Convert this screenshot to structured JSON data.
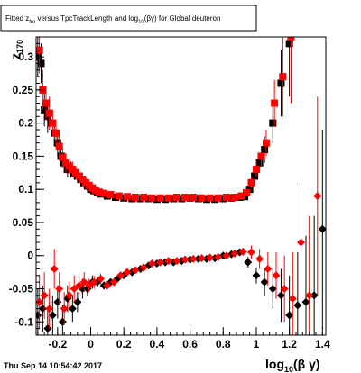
{
  "chart_data": {
    "type": "scatter",
    "title": "Fitted z_{fro} versus TpcTrackLength and log_{10}(βγ) for Global deuteron",
    "xlabel": "log_{10}(βγ)",
    "ylabel": "z_{170}",
    "xlim": [
      -0.33,
      1.42
    ],
    "ylim": [
      -0.12,
      0.33
    ],
    "x_ticks": [
      "-0.2",
      "0",
      "0.2",
      "0.4",
      "0.6",
      "0.8",
      "1",
      "1.2",
      "1.4"
    ],
    "x_tick_values": [
      -0.2,
      0,
      0.2,
      0.4,
      0.6,
      0.8,
      1,
      1.2,
      1.4
    ],
    "y_ticks": [
      "0.3",
      "0.25",
      "0.2",
      "0.15",
      "0.1",
      "0.05",
      "0",
      "-0.05",
      "-0.1"
    ],
    "y_tick_values": [
      0.3,
      0.25,
      0.2,
      0.15,
      0.1,
      0.05,
      0,
      -0.05,
      -0.1
    ],
    "series": [
      {
        "color": "#000000",
        "marker": "square",
        "x": [
          -0.32,
          -0.3,
          -0.28,
          -0.26,
          -0.24,
          -0.22,
          -0.2,
          -0.18,
          -0.16,
          -0.14,
          -0.12,
          -0.1,
          -0.08,
          -0.06,
          -0.04,
          -0.02,
          0.0,
          0.02,
          0.04,
          0.06,
          0.1,
          0.15,
          0.2,
          0.25,
          0.3,
          0.35,
          0.4,
          0.45,
          0.5,
          0.55,
          0.6,
          0.65,
          0.7,
          0.75,
          0.8,
          0.85,
          0.9,
          0.93,
          0.96,
          0.99,
          1.02,
          1.05,
          1.1,
          1.15,
          1.2
        ],
        "y": [
          0.3,
          0.29,
          0.22,
          0.21,
          0.2,
          0.185,
          0.17,
          0.15,
          0.14,
          0.13,
          0.13,
          0.125,
          0.12,
          0.115,
          0.11,
          0.105,
          0.1,
          0.098,
          0.095,
          0.093,
          0.09,
          0.088,
          0.087,
          0.086,
          0.086,
          0.086,
          0.085,
          0.085,
          0.086,
          0.086,
          0.087,
          0.086,
          0.085,
          0.085,
          0.086,
          0.087,
          0.088,
          0.089,
          0.1,
          0.12,
          0.14,
          0.16,
          0.2,
          0.26,
          0.32
        ],
        "err": [
          0.03,
          0.03,
          0.025,
          0.025,
          0.02,
          0.02,
          0.02,
          0.015,
          0.015,
          0.012,
          0.012,
          0.01,
          0.01,
          0.01,
          0.008,
          0.008,
          0.007,
          0.006,
          0.005,
          0.005,
          0.004,
          0.004,
          0.003,
          0.003,
          0.003,
          0.003,
          0.003,
          0.003,
          0.003,
          0.003,
          0.003,
          0.003,
          0.003,
          0.003,
          0.004,
          0.004,
          0.004,
          0.006,
          0.008,
          0.01,
          0.015,
          0.02,
          0.03,
          0.05,
          0.08
        ]
      },
      {
        "color": "#ff0000",
        "marker": "square",
        "x": [
          -0.31,
          -0.29,
          -0.27,
          -0.25,
          -0.23,
          -0.21,
          -0.19,
          -0.17,
          -0.15,
          -0.13,
          -0.11,
          -0.09,
          -0.07,
          -0.05,
          -0.03,
          -0.01,
          0.01,
          0.03,
          0.05,
          0.08,
          0.12,
          0.17,
          0.22,
          0.27,
          0.32,
          0.37,
          0.42,
          0.47,
          0.52,
          0.57,
          0.62,
          0.67,
          0.72,
          0.77,
          0.82,
          0.87,
          0.91,
          0.94,
          0.97,
          1.0,
          1.03,
          1.06,
          1.11,
          1.16,
          1.21
        ],
        "y": [
          0.31,
          0.25,
          0.23,
          0.215,
          0.2,
          0.185,
          0.165,
          0.148,
          0.14,
          0.135,
          0.13,
          0.125,
          0.12,
          0.115,
          0.11,
          0.106,
          0.102,
          0.099,
          0.096,
          0.094,
          0.092,
          0.09,
          0.089,
          0.088,
          0.088,
          0.087,
          0.087,
          0.087,
          0.088,
          0.088,
          0.088,
          0.087,
          0.087,
          0.087,
          0.088,
          0.088,
          0.09,
          0.095,
          0.11,
          0.13,
          0.15,
          0.17,
          0.23,
          0.27,
          0.33
        ],
        "err": [
          0.035,
          0.03,
          0.025,
          0.025,
          0.02,
          0.02,
          0.02,
          0.015,
          0.015,
          0.012,
          0.012,
          0.01,
          0.01,
          0.01,
          0.008,
          0.008,
          0.007,
          0.006,
          0.005,
          0.005,
          0.004,
          0.004,
          0.003,
          0.003,
          0.003,
          0.003,
          0.003,
          0.003,
          0.003,
          0.003,
          0.003,
          0.003,
          0.003,
          0.003,
          0.004,
          0.004,
          0.005,
          0.006,
          0.008,
          0.012,
          0.015,
          0.02,
          0.035,
          0.06,
          0.1
        ]
      },
      {
        "color": "#000000",
        "marker": "diamond",
        "x": [
          -0.32,
          -0.29,
          -0.26,
          -0.23,
          -0.2,
          -0.17,
          -0.14,
          -0.11,
          -0.08,
          -0.05,
          -0.02,
          0.01,
          0.04,
          0.08,
          0.12,
          0.16,
          0.2,
          0.25,
          0.3,
          0.35,
          0.4,
          0.45,
          0.5,
          0.55,
          0.6,
          0.65,
          0.7,
          0.75,
          0.8,
          0.85,
          0.9,
          0.95,
          1.0,
          1.05,
          1.1,
          1.15,
          1.2,
          1.25,
          1.3,
          1.35,
          1.4
        ],
        "y": [
          -0.09,
          -0.08,
          -0.11,
          -0.09,
          -0.07,
          -0.1,
          -0.065,
          -0.08,
          -0.07,
          -0.05,
          -0.05,
          -0.04,
          -0.04,
          -0.045,
          -0.04,
          -0.035,
          -0.03,
          -0.025,
          -0.02,
          -0.015,
          -0.012,
          -0.01,
          -0.01,
          -0.008,
          -0.006,
          -0.005,
          -0.005,
          -0.004,
          0.0,
          0.002,
          0.005,
          -0.01,
          -0.03,
          -0.04,
          -0.05,
          -0.06,
          -0.09,
          -0.075,
          -0.07,
          -0.06,
          0.04
        ],
        "err": [
          0.04,
          0.035,
          0.03,
          0.03,
          0.025,
          0.025,
          0.02,
          0.02,
          0.015,
          0.015,
          0.01,
          0.01,
          0.008,
          0.006,
          0.005,
          0.004,
          0.004,
          0.003,
          0.003,
          0.003,
          0.003,
          0.003,
          0.003,
          0.003,
          0.003,
          0.003,
          0.003,
          0.003,
          0.004,
          0.004,
          0.005,
          0.008,
          0.012,
          0.02,
          0.03,
          0.04,
          0.06,
          0.08,
          0.1,
          0.12,
          0.15
        ]
      },
      {
        "color": "#ff0000",
        "marker": "diamond",
        "x": [
          -0.31,
          -0.28,
          -0.25,
          -0.22,
          -0.19,
          -0.16,
          -0.13,
          -0.1,
          -0.07,
          -0.04,
          -0.01,
          0.02,
          0.06,
          0.1,
          0.14,
          0.18,
          0.22,
          0.27,
          0.32,
          0.37,
          0.42,
          0.47,
          0.52,
          0.57,
          0.62,
          0.67,
          0.72,
          0.77,
          0.82,
          0.87,
          0.92,
          0.97,
          1.02,
          1.07,
          1.12,
          1.17,
          1.22,
          1.27,
          1.32,
          1.37
        ],
        "y": [
          -0.07,
          -0.06,
          -0.08,
          -0.02,
          -0.05,
          -0.08,
          -0.06,
          -0.05,
          -0.045,
          -0.04,
          -0.045,
          -0.04,
          -0.035,
          -0.045,
          -0.04,
          -0.03,
          -0.025,
          -0.022,
          -0.018,
          -0.012,
          -0.01,
          -0.008,
          -0.008,
          -0.006,
          -0.005,
          -0.004,
          -0.003,
          -0.002,
          0.0,
          0.003,
          0.006,
          0.005,
          -0.005,
          -0.02,
          -0.03,
          -0.05,
          -0.065,
          0.02,
          -0.06,
          0.09
        ],
        "err": [
          0.04,
          0.035,
          0.03,
          0.03,
          0.025,
          0.025,
          0.02,
          0.02,
          0.015,
          0.015,
          0.01,
          0.01,
          0.008,
          0.006,
          0.005,
          0.004,
          0.004,
          0.003,
          0.003,
          0.003,
          0.003,
          0.003,
          0.003,
          0.003,
          0.003,
          0.003,
          0.003,
          0.003,
          0.004,
          0.004,
          0.006,
          0.01,
          0.015,
          0.025,
          0.035,
          0.05,
          0.07,
          0.09,
          0.12,
          0.15
        ]
      }
    ]
  },
  "footer": {
    "timestamp": "Thu Sep 14 10:54:42 2017"
  }
}
